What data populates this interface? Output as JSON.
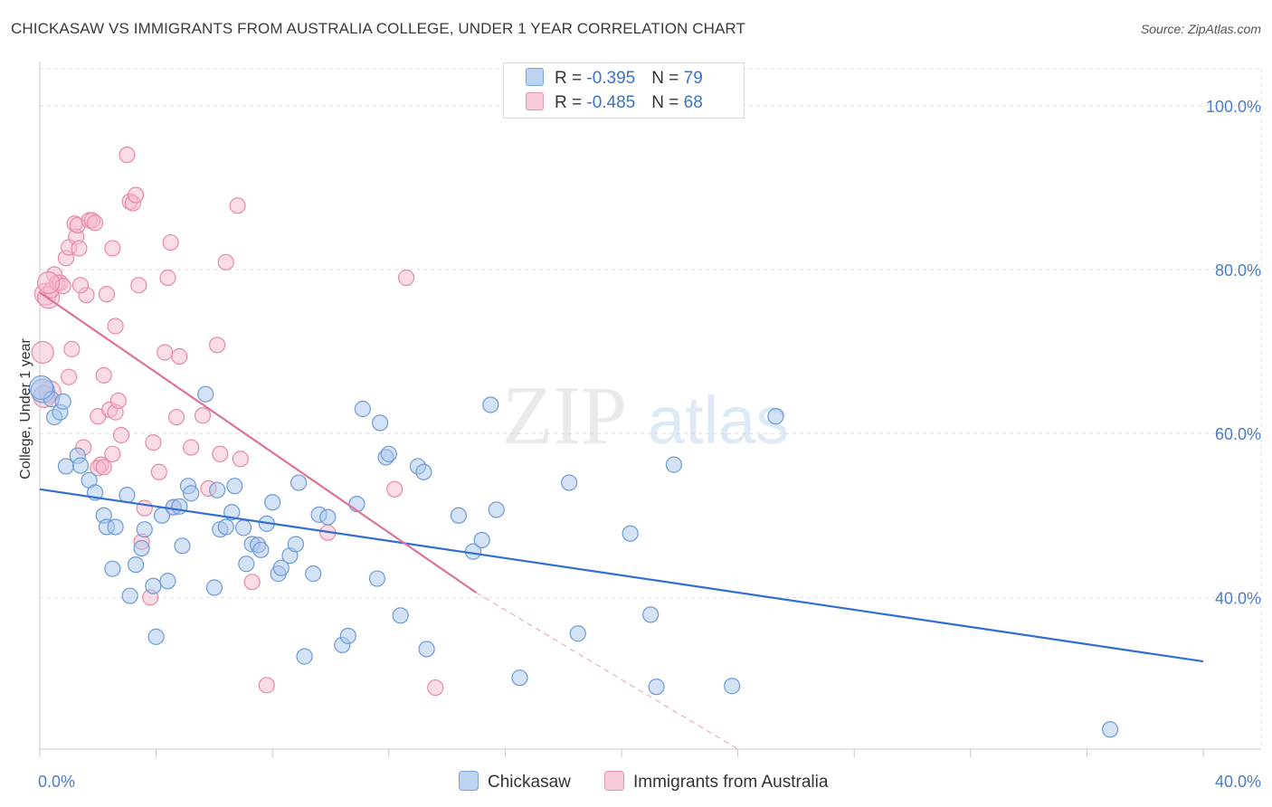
{
  "header": {
    "title": "CHICKASAW VS IMMIGRANTS FROM AUSTRALIA COLLEGE, UNDER 1 YEAR CORRELATION CHART",
    "source": "Source: ZipAtlas.com"
  },
  "watermark": {
    "zip": "ZIP",
    "atlas": "atlas"
  },
  "legend": {
    "series1": {
      "r_label": "R = ",
      "r_value": "-0.395",
      "n_label": "N = ",
      "n_value": "79"
    },
    "series2": {
      "r_label": "R = ",
      "r_value": "-0.485",
      "n_label": "N = ",
      "n_value": "68"
    }
  },
  "bottom_legend": {
    "series1": "Chickasaw",
    "series2": "Immigrants from Australia"
  },
  "colors": {
    "blue_fill": "#a9c5ee",
    "blue_stroke": "#6c9ad8",
    "blue_line": "#2f6fd1",
    "pink_fill": "#f6b9cc",
    "pink_stroke": "#e889a7",
    "pink_line": "#e0709a",
    "axis_text": "#4a7cc9",
    "grid": "#dddddd"
  },
  "chart_data": {
    "type": "scatter",
    "title": "CHICKASAW VS IMMIGRANTS FROM AUSTRALIA COLLEGE, UNDER 1 YEAR CORRELATION CHART",
    "xlabel": "",
    "ylabel": "College, Under 1 year",
    "xlim": [
      0,
      40
    ],
    "ylim": [
      21.5,
      104.5
    ],
    "x_tick_labels": [
      "0.0%",
      "40.0%"
    ],
    "y_ticks": [
      40,
      60,
      80,
      100
    ],
    "y_tick_labels": [
      "40.0%",
      "60.0%",
      "80.0%",
      "100.0%"
    ],
    "grid": true,
    "legend_position": "top-center",
    "series": [
      {
        "name": "Chickasaw",
        "color": "#a9c5ee",
        "r": -0.395,
        "n": 79,
        "trend": {
          "x": [
            0,
            40
          ],
          "y": [
            53.2,
            32.2
          ]
        },
        "points": [
          [
            0.1,
            65.2
          ],
          [
            0.4,
            64.2
          ],
          [
            0.5,
            62.0
          ],
          [
            0.7,
            62.6
          ],
          [
            0.8,
            63.9
          ],
          [
            0.9,
            56.0
          ],
          [
            1.3,
            57.3
          ],
          [
            1.4,
            56.1
          ],
          [
            1.7,
            54.3
          ],
          [
            1.9,
            52.8
          ],
          [
            2.2,
            50.0
          ],
          [
            2.3,
            48.6
          ],
          [
            2.6,
            48.6
          ],
          [
            2.5,
            43.5
          ],
          [
            3.0,
            52.5
          ],
          [
            3.1,
            40.2
          ],
          [
            3.3,
            44.0
          ],
          [
            3.5,
            46.0
          ],
          [
            3.6,
            48.3
          ],
          [
            3.9,
            41.4
          ],
          [
            4.0,
            35.2
          ],
          [
            4.2,
            50.0
          ],
          [
            4.4,
            42.0
          ],
          [
            4.6,
            51.0
          ],
          [
            4.8,
            51.1
          ],
          [
            4.9,
            46.3
          ],
          [
            5.1,
            53.6
          ],
          [
            5.2,
            52.7
          ],
          [
            5.7,
            64.8
          ],
          [
            6.1,
            53.1
          ],
          [
            6.0,
            41.2
          ],
          [
            6.2,
            48.3
          ],
          [
            6.4,
            48.6
          ],
          [
            6.6,
            50.4
          ],
          [
            6.7,
            53.6
          ],
          [
            7.0,
            48.5
          ],
          [
            7.1,
            44.1
          ],
          [
            7.3,
            46.5
          ],
          [
            7.5,
            46.4
          ],
          [
            7.6,
            45.8
          ],
          [
            7.8,
            49.0
          ],
          [
            8.0,
            51.6
          ],
          [
            8.2,
            42.9
          ],
          [
            8.3,
            43.6
          ],
          [
            8.6,
            45.1
          ],
          [
            8.8,
            46.5
          ],
          [
            8.9,
            54.0
          ],
          [
            9.1,
            32.8
          ],
          [
            9.4,
            42.9
          ],
          [
            9.6,
            50.1
          ],
          [
            9.9,
            49.8
          ],
          [
            10.4,
            34.2
          ],
          [
            10.6,
            35.3
          ],
          [
            10.9,
            51.4
          ],
          [
            11.1,
            63.0
          ],
          [
            11.6,
            42.3
          ],
          [
            11.7,
            61.3
          ],
          [
            11.9,
            57.1
          ],
          [
            12.0,
            57.5
          ],
          [
            12.4,
            37.8
          ],
          [
            13.0,
            56.0
          ],
          [
            13.2,
            55.3
          ],
          [
            13.3,
            33.7
          ],
          [
            14.4,
            50.0
          ],
          [
            14.9,
            45.6
          ],
          [
            15.2,
            47.0
          ],
          [
            15.5,
            63.5
          ],
          [
            15.7,
            50.7
          ],
          [
            16.5,
            30.2
          ],
          [
            18.2,
            54.0
          ],
          [
            18.5,
            35.6
          ],
          [
            20.3,
            47.8
          ],
          [
            21.0,
            37.9
          ],
          [
            21.2,
            29.1
          ],
          [
            21.8,
            56.2
          ],
          [
            23.8,
            29.2
          ],
          [
            25.3,
            62.1
          ],
          [
            36.8,
            23.9
          ],
          [
            0.05,
            65.6
          ]
        ]
      },
      {
        "name": "Immigrants from Australia",
        "color": "#f6b9cc",
        "r": -0.485,
        "n": 68,
        "trend": {
          "x": [
            0,
            15
          ],
          "y": [
            77.2,
            40.6
          ]
        },
        "trend_extended": {
          "x": [
            15,
            24
          ],
          "y": [
            40.6,
            21.5
          ]
        },
        "points": [
          [
            0.1,
            69.9
          ],
          [
            0.2,
            77.0
          ],
          [
            0.3,
            76.6
          ],
          [
            0.35,
            65.1
          ],
          [
            0.4,
            77.5
          ],
          [
            0.5,
            79.4
          ],
          [
            0.6,
            78.4
          ],
          [
            0.7,
            78.4
          ],
          [
            0.8,
            78.0
          ],
          [
            0.9,
            81.4
          ],
          [
            1.0,
            66.9
          ],
          [
            1.1,
            70.3
          ],
          [
            1.0,
            82.7
          ],
          [
            1.2,
            85.6
          ],
          [
            1.25,
            84.0
          ],
          [
            1.3,
            85.4
          ],
          [
            1.35,
            82.6
          ],
          [
            1.5,
            58.3
          ],
          [
            1.6,
            76.9
          ],
          [
            1.7,
            86.0
          ],
          [
            1.8,
            86.0
          ],
          [
            1.9,
            85.7
          ],
          [
            2.1,
            56.2
          ],
          [
            2.0,
            55.8
          ],
          [
            2.3,
            77.0
          ],
          [
            2.0,
            62.1
          ],
          [
            2.2,
            67.1
          ],
          [
            2.4,
            62.9
          ],
          [
            2.5,
            57.5
          ],
          [
            2.5,
            82.6
          ],
          [
            2.6,
            73.1
          ],
          [
            2.6,
            62.6
          ],
          [
            2.7,
            64.0
          ],
          [
            2.8,
            59.8
          ],
          [
            3.0,
            94.0
          ],
          [
            3.1,
            88.3
          ],
          [
            3.2,
            88.1
          ],
          [
            3.3,
            89.1
          ],
          [
            3.4,
            78.1
          ],
          [
            3.5,
            46.8
          ],
          [
            3.6,
            50.9
          ],
          [
            3.8,
            40.0
          ],
          [
            3.9,
            58.9
          ],
          [
            4.1,
            55.3
          ],
          [
            4.3,
            69.9
          ],
          [
            4.4,
            79.0
          ],
          [
            4.5,
            83.3
          ],
          [
            4.6,
            51.0
          ],
          [
            4.7,
            62.0
          ],
          [
            4.8,
            69.4
          ],
          [
            5.2,
            58.3
          ],
          [
            5.6,
            62.2
          ],
          [
            5.8,
            53.3
          ],
          [
            6.1,
            70.8
          ],
          [
            6.2,
            57.5
          ],
          [
            6.4,
            80.9
          ],
          [
            6.8,
            87.8
          ],
          [
            6.9,
            56.9
          ],
          [
            7.3,
            41.9
          ],
          [
            7.8,
            29.3
          ],
          [
            9.9,
            47.9
          ],
          [
            12.2,
            53.2
          ],
          [
            12.6,
            79.0
          ],
          [
            13.6,
            29.0
          ],
          [
            0.15,
            64.5
          ],
          [
            0.3,
            78.4
          ],
          [
            1.4,
            78.1
          ],
          [
            2.2,
            55.9
          ]
        ]
      }
    ]
  }
}
